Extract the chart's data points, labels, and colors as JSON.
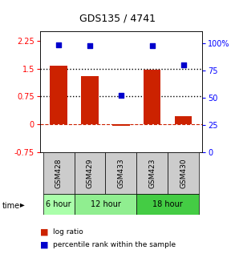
{
  "title": "GDS135 / 4741",
  "samples": [
    "GSM428",
    "GSM429",
    "GSM433",
    "GSM423",
    "GSM430"
  ],
  "log_ratios": [
    1.57,
    1.3,
    -0.05,
    1.47,
    0.22
  ],
  "percentile_ranks": [
    99,
    98,
    52,
    98,
    80
  ],
  "group_spans": [
    {
      "label": "6 hour",
      "start": 0,
      "end": 1,
      "color": "#aaffaa"
    },
    {
      "label": "12 hour",
      "start": 1,
      "end": 3,
      "color": "#90ee90"
    },
    {
      "label": "18 hour",
      "start": 3,
      "end": 5,
      "color": "#44cc44"
    }
  ],
  "bar_color": "#cc2200",
  "dot_color": "#0000cc",
  "gray_cell": "#cccccc",
  "left_yticks": [
    -0.75,
    0,
    0.75,
    1.5,
    2.25
  ],
  "right_yticks": [
    0,
    25,
    50,
    75,
    100
  ],
  "left_ylim": [
    -0.75,
    2.5
  ],
  "right_ylim": [
    0,
    111
  ],
  "bg_color": "#ffffff"
}
